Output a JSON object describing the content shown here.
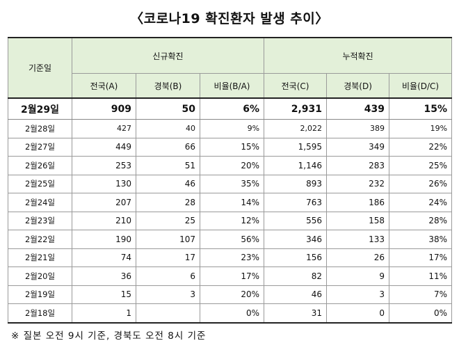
{
  "title": "〈코로나19 확진환자 발생 추이〉",
  "header": {
    "date": "기준일",
    "new_group": "신규확진",
    "cum_group": "누적확진",
    "new_cols": [
      "전국(A)",
      "경북(B)",
      "비율(B/A)"
    ],
    "cum_cols": [
      "전국(C)",
      "경북(D)",
      "비율(D/C)"
    ]
  },
  "rows": [
    {
      "date": "2월29일",
      "a": "909",
      "b": "50",
      "ba": "6%",
      "c": "2,931",
      "d": "439",
      "dc": "15%"
    },
    {
      "date": "2월28일",
      "a": "427",
      "b": "40",
      "ba": "9%",
      "c": "2,022",
      "d": "389",
      "dc": "19%"
    },
    {
      "date": "2월27일",
      "a": "449",
      "b": "66",
      "ba": "15%",
      "c": "1,595",
      "d": "349",
      "dc": "22%"
    },
    {
      "date": "2월26일",
      "a": "253",
      "b": "51",
      "ba": "20%",
      "c": "1,146",
      "d": "283",
      "dc": "25%"
    },
    {
      "date": "2월25일",
      "a": "130",
      "b": "46",
      "ba": "35%",
      "c": "893",
      "d": "232",
      "dc": "26%"
    },
    {
      "date": "2월24일",
      "a": "207",
      "b": "28",
      "ba": "14%",
      "c": "763",
      "d": "186",
      "dc": "24%"
    },
    {
      "date": "2월23일",
      "a": "210",
      "b": "25",
      "ba": "12%",
      "c": "556",
      "d": "158",
      "dc": "28%"
    },
    {
      "date": "2월22일",
      "a": "190",
      "b": "107",
      "ba": "56%",
      "c": "346",
      "d": "133",
      "dc": "38%"
    },
    {
      "date": "2월21일",
      "a": "74",
      "b": "17",
      "ba": "23%",
      "c": "156",
      "d": "26",
      "dc": "17%"
    },
    {
      "date": "2월20일",
      "a": "36",
      "b": "6",
      "ba": "17%",
      "c": "82",
      "d": "9",
      "dc": "11%"
    },
    {
      "date": "2월19일",
      "a": "15",
      "b": "3",
      "ba": "20%",
      "c": "46",
      "d": "3",
      "dc": "7%"
    },
    {
      "date": "2월18일",
      "a": "1",
      "b": "",
      "ba": "0%",
      "c": "31",
      "d": "0",
      "dc": "0%"
    }
  ],
  "note": "※ 질본 오전 9시 기준, 경북도 오전 8시 기준"
}
